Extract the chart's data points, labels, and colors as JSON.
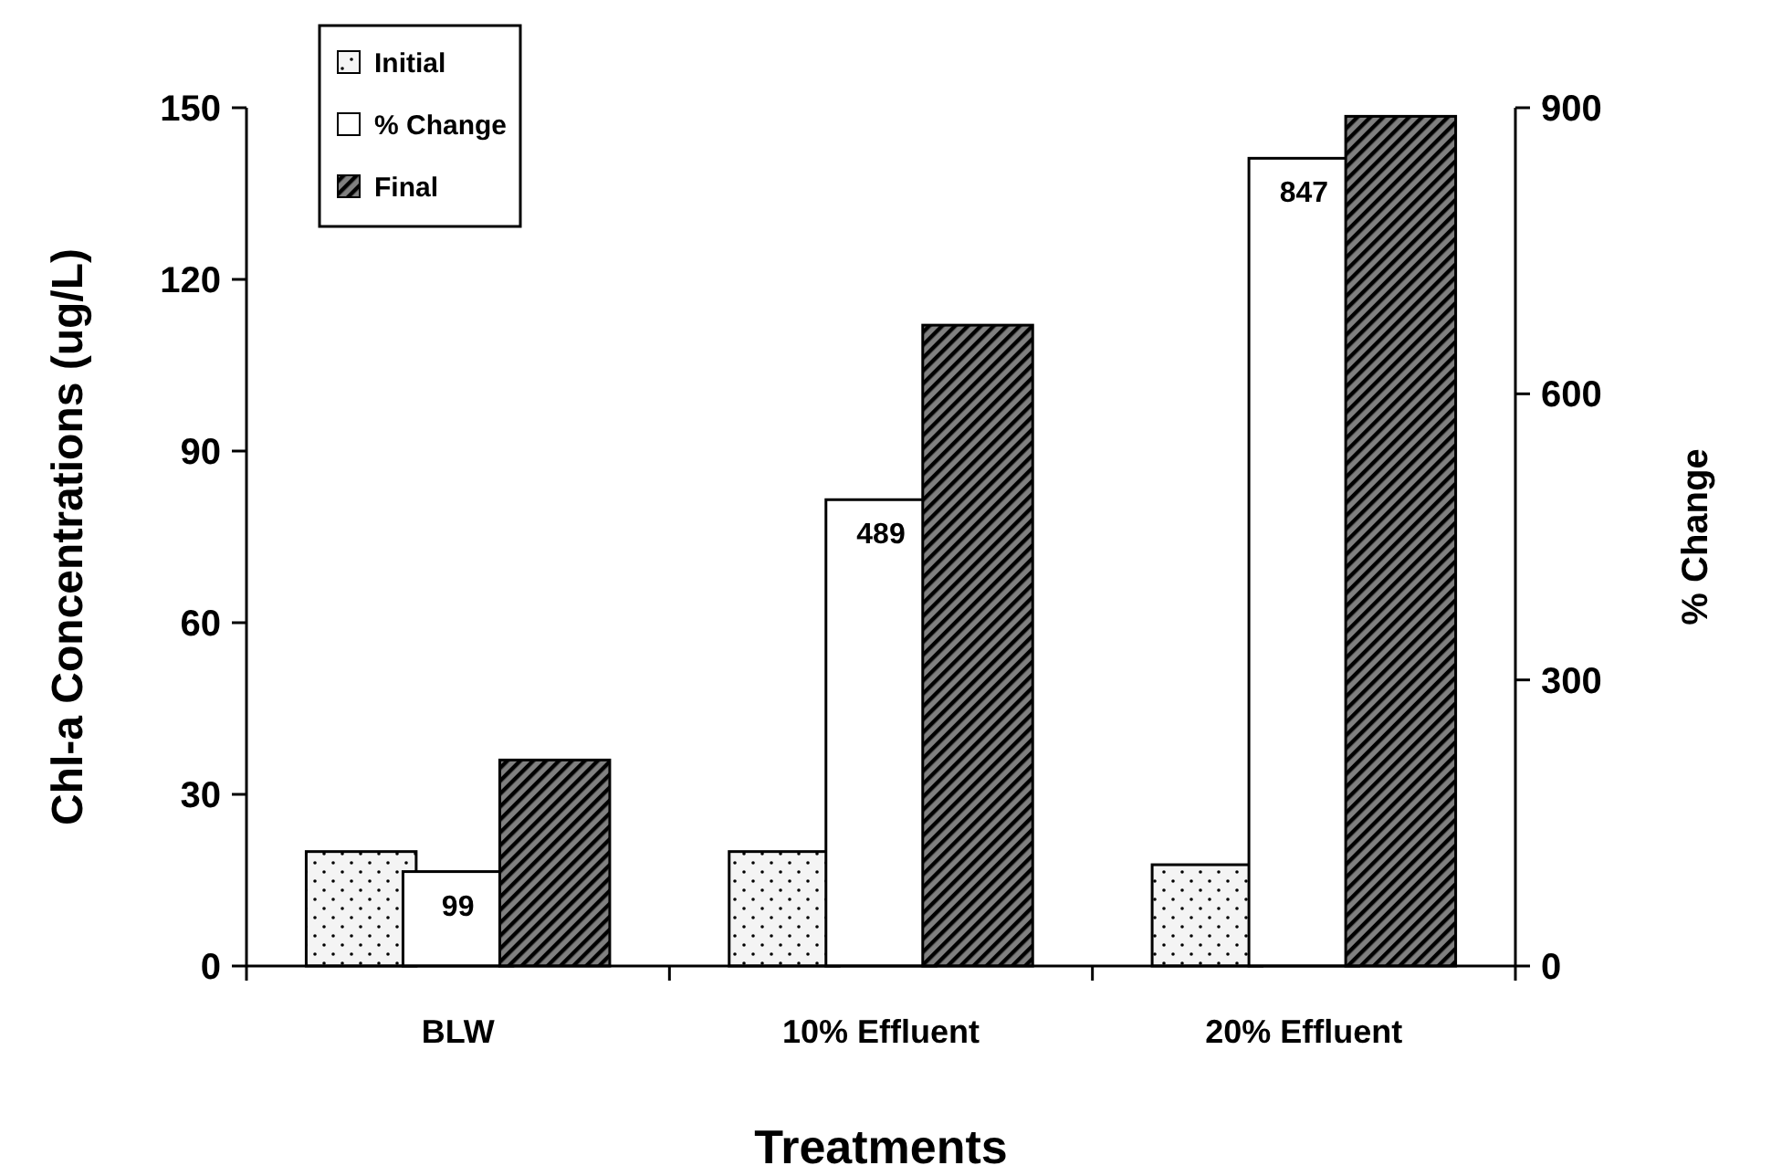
{
  "chart_data": {
    "type": "bar",
    "xlabel": "Treatments",
    "ylabel": "Chl-a Concentrations (ug/L)",
    "y2label": "% Change",
    "categories": [
      "BLW",
      "10% Effluent",
      "20% Effluent"
    ],
    "series": [
      {
        "name": "Initial",
        "color": "#f4f4f4",
        "values": [
          20,
          20,
          17.7
        ]
      },
      {
        "name": "% Change",
        "color": "#ffffff",
        "axis": "y2",
        "values": [
          99,
          489,
          847
        ],
        "value_labels": [
          "99",
          "489",
          "847"
        ]
      },
      {
        "name": "Final",
        "color": "#808080",
        "values": [
          36,
          112,
          148.5
        ]
      }
    ],
    "ylim": [
      0,
      150
    ],
    "yticks": [
      0,
      30,
      60,
      90,
      120,
      150
    ],
    "y2lim": [
      0,
      900
    ],
    "y2ticks": [
      0,
      300,
      600,
      900
    ],
    "legend": "top left",
    "grid": false
  }
}
